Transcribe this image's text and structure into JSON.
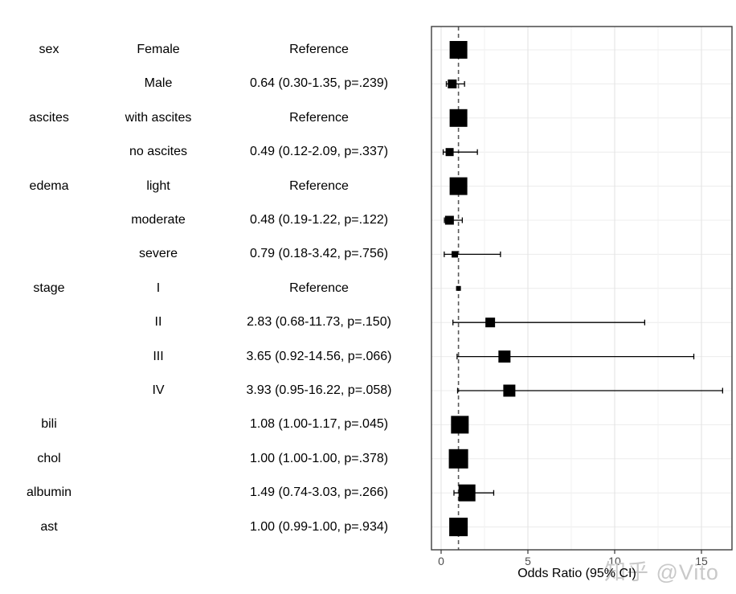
{
  "watermark": {
    "text": "知乎 @Vito",
    "color": "#c9c9c9"
  },
  "chart_data": {
    "type": "forest",
    "title": "",
    "xlabel": "Odds Ratio (95% CI)",
    "ylabel": "",
    "x_ticks": [
      0,
      5,
      10,
      15
    ],
    "x_minor_gridlines": [
      2.5,
      7.5,
      12.5
    ],
    "xlim": [
      -0.55,
      16.75
    ],
    "reference_line": 1,
    "grid": true,
    "legend": "none",
    "columns": [
      "variable",
      "level",
      "estimate"
    ],
    "rows": [
      {
        "variable": "sex",
        "level": "Female",
        "estimate": "Reference",
        "or": 1.0,
        "lo": 1.0,
        "hi": 1.0,
        "ref": true,
        "size": 22
      },
      {
        "variable": "",
        "level": "Male",
        "estimate": "0.64 (0.30-1.35, p=.239)",
        "or": 0.64,
        "lo": 0.3,
        "hi": 1.35,
        "ref": false,
        "size": 11
      },
      {
        "variable": "ascites",
        "level": "with ascites",
        "estimate": "Reference",
        "or": 1.0,
        "lo": 1.0,
        "hi": 1.0,
        "ref": true,
        "size": 22
      },
      {
        "variable": "",
        "level": "no ascites",
        "estimate": "0.49 (0.12-2.09, p=.337)",
        "or": 0.49,
        "lo": 0.12,
        "hi": 2.09,
        "ref": false,
        "size": 10
      },
      {
        "variable": "edema",
        "level": "light",
        "estimate": "Reference",
        "or": 1.0,
        "lo": 1.0,
        "hi": 1.0,
        "ref": true,
        "size": 22
      },
      {
        "variable": "",
        "level": "moderate",
        "estimate": "0.48 (0.19-1.22, p=.122)",
        "or": 0.48,
        "lo": 0.19,
        "hi": 1.22,
        "ref": false,
        "size": 11
      },
      {
        "variable": "",
        "level": "severe",
        "estimate": "0.79 (0.18-3.42, p=.756)",
        "or": 0.79,
        "lo": 0.18,
        "hi": 3.42,
        "ref": false,
        "size": 8
      },
      {
        "variable": "stage",
        "level": "I",
        "estimate": "Reference",
        "or": 1.0,
        "lo": 1.0,
        "hi": 1.0,
        "ref": true,
        "size": 6
      },
      {
        "variable": "",
        "level": "II",
        "estimate": "2.83 (0.68-11.73, p=.150)",
        "or": 2.83,
        "lo": 0.68,
        "hi": 11.73,
        "ref": false,
        "size": 12
      },
      {
        "variable": "",
        "level": "III",
        "estimate": "3.65 (0.92-14.56, p=.066)",
        "or": 3.65,
        "lo": 0.92,
        "hi": 14.56,
        "ref": false,
        "size": 15
      },
      {
        "variable": "",
        "level": "IV",
        "estimate": "3.93 (0.95-16.22, p=.058)",
        "or": 3.93,
        "lo": 0.95,
        "hi": 16.22,
        "ref": false,
        "size": 15
      },
      {
        "variable": "bili",
        "level": "",
        "estimate": "1.08 (1.00-1.17, p=.045)",
        "or": 1.08,
        "lo": 1.0,
        "hi": 1.17,
        "ref": false,
        "size": 22
      },
      {
        "variable": "chol",
        "level": "",
        "estimate": "1.00 (1.00-1.00, p=.378)",
        "or": 1.0,
        "lo": 1.0,
        "hi": 1.0,
        "ref": false,
        "size": 24
      },
      {
        "variable": "albumin",
        "level": "",
        "estimate": "1.49 (0.74-3.03, p=.266)",
        "or": 1.49,
        "lo": 0.74,
        "hi": 3.03,
        "ref": false,
        "size": 21
      },
      {
        "variable": "ast",
        "level": "",
        "estimate": "1.00 (0.99-1.00, p=.934)",
        "or": 1.0,
        "lo": 0.99,
        "hi": 1.0,
        "ref": false,
        "size": 23
      }
    ],
    "colors": {
      "marker": "#000000",
      "ci_line": "#000000",
      "reference_line": "#595959",
      "grid_major": "#e2e2e2",
      "grid_minor": "#f1f1f1",
      "grid_horizontal": "#ececec",
      "panel_border": "#3d3d3d",
      "tick": "#333333",
      "tick_label": "#4d4d4d",
      "text": "#000000"
    }
  }
}
